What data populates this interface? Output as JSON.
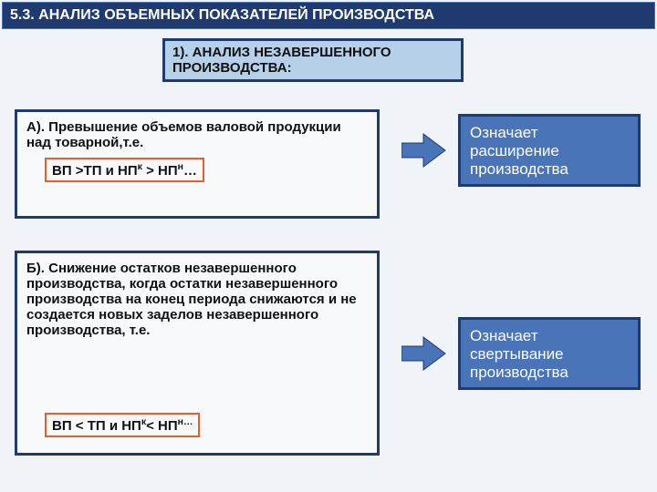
{
  "colors": {
    "page_bg": "#f0f4f8",
    "header_bg": "#1f3a6e",
    "header_text": "#ffffff",
    "header_border": "#4a74b8",
    "subtitle_bg": "#b5d0e8",
    "subtitle_border": "#1f3a6e",
    "box_bg": "#f7f9fb",
    "box_border": "#1f3a6e",
    "formula_border": "#e06030",
    "result_bg": "#4a74b8",
    "result_border": "#1f3a6e",
    "result_text": "#ffffff",
    "arrow_fill": "#4a74b8",
    "arrow_stroke": "#1f3a6e",
    "text_color": "#111111",
    "fontsize_header": 16,
    "fontsize_body": 15
  },
  "header": "5.3. АНАЛИЗ ОБЪЕМНЫХ ПОКАЗАТЕЛЕЙ ПРОИЗВОДСТВА",
  "subtitle": "1). АНАЛИЗ НЕЗАВЕРШЕННОГО ПРОИЗВОДСТВА:",
  "boxA": {
    "text": "А). Превышение объемов валовой продукции над товарной,т.е.",
    "formula_html": "ВП >ТП и НП<sup>к</sup> > НП<sup>н</sup>…"
  },
  "resultA": "Означает расширение производства",
  "boxB": {
    "text": "Б). Снижение остатков незавершенного производства, когда остатки незавершенного производства на конец периода снижаются и не создается новых заделов незавершенного производства, т.е.",
    "formula_html": "ВП < ТП и НП<sup>к</sup>< НП<sup>н…</sup>"
  },
  "resultB": "Означает свертывание производства"
}
